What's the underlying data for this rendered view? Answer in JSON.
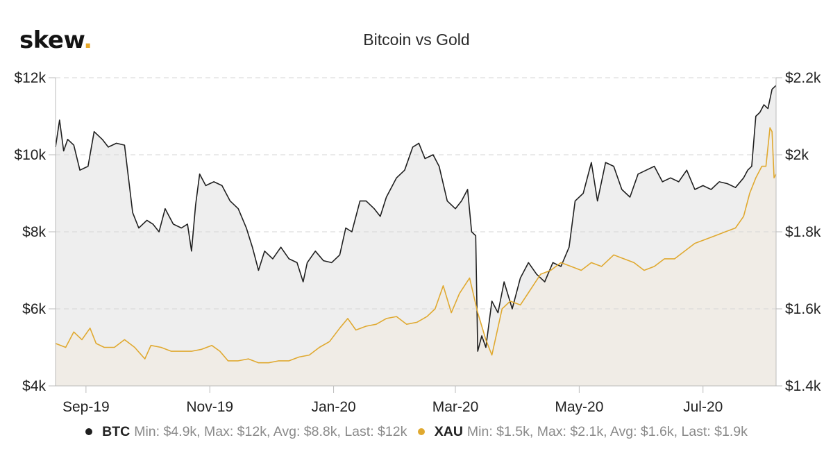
{
  "brand": {
    "name": "skew",
    "dot": "."
  },
  "chart_data": {
    "type": "line",
    "title": "Bitcoin vs Gold",
    "x_tick_labels": [
      "Sep-19",
      "Nov-19",
      "Jan-20",
      "Mar-20",
      "May-20",
      "Jul-20"
    ],
    "x_tick_dates": [
      "2019-09-01",
      "2019-11-01",
      "2020-01-01",
      "2020-03-01",
      "2020-05-01",
      "2020-07-01"
    ],
    "x_range": [
      "2019-08-17",
      "2020-08-06"
    ],
    "y_left": {
      "ticks": [
        4000,
        6000,
        8000,
        10000,
        12000
      ],
      "labels": [
        "$4k",
        "$6k",
        "$8k",
        "$10k",
        "$12k"
      ],
      "range": [
        4000,
        12000
      ]
    },
    "y_right": {
      "ticks": [
        1400,
        1600,
        1800,
        2000,
        2200
      ],
      "labels": [
        "$1.4k",
        "$1.6k",
        "$1.8k",
        "$2k",
        "$2.2k"
      ],
      "range": [
        1400,
        2200
      ]
    },
    "grid": "horizontal-dashed",
    "legend_position": "bottom",
    "series": [
      {
        "name": "BTC",
        "axis": "left",
        "color": "#1f1f1f",
        "fill": "#ebebeb",
        "stats": "Min: $4.9k, Max: $12k, Avg: $8.8k, Last: $12k",
        "points": [
          [
            "2019-08-17",
            10200
          ],
          [
            "2019-08-19",
            10900
          ],
          [
            "2019-08-21",
            10100
          ],
          [
            "2019-08-23",
            10400
          ],
          [
            "2019-08-26",
            10250
          ],
          [
            "2019-08-29",
            9600
          ],
          [
            "2019-09-02",
            9700
          ],
          [
            "2019-09-05",
            10600
          ],
          [
            "2019-09-09",
            10400
          ],
          [
            "2019-09-12",
            10200
          ],
          [
            "2019-09-16",
            10300
          ],
          [
            "2019-09-20",
            10250
          ],
          [
            "2019-09-24",
            8500
          ],
          [
            "2019-09-27",
            8100
          ],
          [
            "2019-10-01",
            8300
          ],
          [
            "2019-10-04",
            8200
          ],
          [
            "2019-10-07",
            8000
          ],
          [
            "2019-10-10",
            8600
          ],
          [
            "2019-10-14",
            8200
          ],
          [
            "2019-10-18",
            8100
          ],
          [
            "2019-10-21",
            8200
          ],
          [
            "2019-10-23",
            7500
          ],
          [
            "2019-10-25",
            8700
          ],
          [
            "2019-10-27",
            9500
          ],
          [
            "2019-10-30",
            9200
          ],
          [
            "2019-11-03",
            9300
          ],
          [
            "2019-11-07",
            9200
          ],
          [
            "2019-11-11",
            8800
          ],
          [
            "2019-11-15",
            8600
          ],
          [
            "2019-11-19",
            8100
          ],
          [
            "2019-11-22",
            7600
          ],
          [
            "2019-11-25",
            7000
          ],
          [
            "2019-11-28",
            7500
          ],
          [
            "2019-12-02",
            7300
          ],
          [
            "2019-12-06",
            7600
          ],
          [
            "2019-12-10",
            7300
          ],
          [
            "2019-12-14",
            7200
          ],
          [
            "2019-12-17",
            6700
          ],
          [
            "2019-12-19",
            7200
          ],
          [
            "2019-12-23",
            7500
          ],
          [
            "2019-12-27",
            7250
          ],
          [
            "2019-12-31",
            7200
          ],
          [
            "2020-01-04",
            7400
          ],
          [
            "2020-01-07",
            8100
          ],
          [
            "2020-01-10",
            8000
          ],
          [
            "2020-01-14",
            8800
          ],
          [
            "2020-01-17",
            8800
          ],
          [
            "2020-01-21",
            8600
          ],
          [
            "2020-01-24",
            8400
          ],
          [
            "2020-01-27",
            8900
          ],
          [
            "2020-02-01",
            9400
          ],
          [
            "2020-02-05",
            9600
          ],
          [
            "2020-02-09",
            10200
          ],
          [
            "2020-02-12",
            10300
          ],
          [
            "2020-02-15",
            9900
          ],
          [
            "2020-02-19",
            10000
          ],
          [
            "2020-02-22",
            9700
          ],
          [
            "2020-02-26",
            8800
          ],
          [
            "2020-03-01",
            8600
          ],
          [
            "2020-03-04",
            8800
          ],
          [
            "2020-03-07",
            9100
          ],
          [
            "2020-03-09",
            8000
          ],
          [
            "2020-03-11",
            7900
          ],
          [
            "2020-03-12",
            4900
          ],
          [
            "2020-03-14",
            5300
          ],
          [
            "2020-03-16",
            5000
          ],
          [
            "2020-03-19",
            6200
          ],
          [
            "2020-03-22",
            5900
          ],
          [
            "2020-03-25",
            6700
          ],
          [
            "2020-03-29",
            6000
          ],
          [
            "2020-04-02",
            6800
          ],
          [
            "2020-04-06",
            7200
          ],
          [
            "2020-04-10",
            6900
          ],
          [
            "2020-04-14",
            6700
          ],
          [
            "2020-04-18",
            7200
          ],
          [
            "2020-04-22",
            7100
          ],
          [
            "2020-04-26",
            7600
          ],
          [
            "2020-04-29",
            8800
          ],
          [
            "2020-05-03",
            9000
          ],
          [
            "2020-05-07",
            9800
          ],
          [
            "2020-05-10",
            8800
          ],
          [
            "2020-05-14",
            9800
          ],
          [
            "2020-05-18",
            9700
          ],
          [
            "2020-05-22",
            9100
          ],
          [
            "2020-05-26",
            8900
          ],
          [
            "2020-05-30",
            9500
          ],
          [
            "2020-06-03",
            9600
          ],
          [
            "2020-06-07",
            9700
          ],
          [
            "2020-06-11",
            9300
          ],
          [
            "2020-06-15",
            9400
          ],
          [
            "2020-06-19",
            9300
          ],
          [
            "2020-06-23",
            9600
          ],
          [
            "2020-06-27",
            9100
          ],
          [
            "2020-07-01",
            9200
          ],
          [
            "2020-07-05",
            9100
          ],
          [
            "2020-07-09",
            9300
          ],
          [
            "2020-07-13",
            9250
          ],
          [
            "2020-07-17",
            9150
          ],
          [
            "2020-07-21",
            9400
          ],
          [
            "2020-07-23",
            9600
          ],
          [
            "2020-07-25",
            9700
          ],
          [
            "2020-07-27",
            11000
          ],
          [
            "2020-07-29",
            11100
          ],
          [
            "2020-07-31",
            11300
          ],
          [
            "2020-08-02",
            11200
          ],
          [
            "2020-08-04",
            11700
          ],
          [
            "2020-08-06",
            11800
          ]
        ]
      },
      {
        "name": "XAU",
        "axis": "right",
        "color": "#e0a930",
        "fill": "#f0ebe4",
        "stats": "Min: $1.5k, Max: $2.1k, Avg: $1.6k, Last: $1.9k",
        "points": [
          [
            "2019-08-17",
            1510
          ],
          [
            "2019-08-22",
            1500
          ],
          [
            "2019-08-26",
            1540
          ],
          [
            "2019-08-30",
            1520
          ],
          [
            "2019-09-03",
            1550
          ],
          [
            "2019-09-06",
            1510
          ],
          [
            "2019-09-10",
            1500
          ],
          [
            "2019-09-15",
            1500
          ],
          [
            "2019-09-20",
            1520
          ],
          [
            "2019-09-25",
            1500
          ],
          [
            "2019-09-30",
            1470
          ],
          [
            "2019-10-03",
            1505
          ],
          [
            "2019-10-08",
            1500
          ],
          [
            "2019-10-13",
            1490
          ],
          [
            "2019-10-18",
            1490
          ],
          [
            "2019-10-23",
            1490
          ],
          [
            "2019-10-28",
            1495
          ],
          [
            "2019-11-02",
            1505
          ],
          [
            "2019-11-06",
            1490
          ],
          [
            "2019-11-10",
            1465
          ],
          [
            "2019-11-15",
            1465
          ],
          [
            "2019-11-20",
            1470
          ],
          [
            "2019-11-25",
            1460
          ],
          [
            "2019-11-30",
            1460
          ],
          [
            "2019-12-05",
            1465
          ],
          [
            "2019-12-10",
            1465
          ],
          [
            "2019-12-15",
            1475
          ],
          [
            "2019-12-20",
            1480
          ],
          [
            "2019-12-25",
            1500
          ],
          [
            "2019-12-30",
            1515
          ],
          [
            "2020-01-04",
            1550
          ],
          [
            "2020-01-08",
            1575
          ],
          [
            "2020-01-12",
            1545
          ],
          [
            "2020-01-17",
            1555
          ],
          [
            "2020-01-22",
            1560
          ],
          [
            "2020-01-27",
            1575
          ],
          [
            "2020-02-01",
            1580
          ],
          [
            "2020-02-06",
            1560
          ],
          [
            "2020-02-11",
            1565
          ],
          [
            "2020-02-16",
            1580
          ],
          [
            "2020-02-20",
            1600
          ],
          [
            "2020-02-24",
            1660
          ],
          [
            "2020-02-28",
            1590
          ],
          [
            "2020-03-03",
            1640
          ],
          [
            "2020-03-08",
            1680
          ],
          [
            "2020-03-12",
            1590
          ],
          [
            "2020-03-16",
            1520
          ],
          [
            "2020-03-19",
            1480
          ],
          [
            "2020-03-24",
            1600
          ],
          [
            "2020-03-28",
            1620
          ],
          [
            "2020-04-02",
            1610
          ],
          [
            "2020-04-07",
            1650
          ],
          [
            "2020-04-12",
            1690
          ],
          [
            "2020-04-17",
            1700
          ],
          [
            "2020-04-22",
            1720
          ],
          [
            "2020-04-27",
            1710
          ],
          [
            "2020-05-02",
            1700
          ],
          [
            "2020-05-07",
            1720
          ],
          [
            "2020-05-12",
            1710
          ],
          [
            "2020-05-18",
            1740
          ],
          [
            "2020-05-23",
            1730
          ],
          [
            "2020-05-28",
            1720
          ],
          [
            "2020-06-02",
            1700
          ],
          [
            "2020-06-07",
            1710
          ],
          [
            "2020-06-12",
            1730
          ],
          [
            "2020-06-17",
            1730
          ],
          [
            "2020-06-22",
            1750
          ],
          [
            "2020-06-27",
            1770
          ],
          [
            "2020-07-02",
            1780
          ],
          [
            "2020-07-07",
            1790
          ],
          [
            "2020-07-12",
            1800
          ],
          [
            "2020-07-17",
            1810
          ],
          [
            "2020-07-21",
            1840
          ],
          [
            "2020-07-24",
            1900
          ],
          [
            "2020-07-27",
            1940
          ],
          [
            "2020-07-30",
            1970
          ],
          [
            "2020-08-01",
            1970
          ],
          [
            "2020-08-03",
            2070
          ],
          [
            "2020-08-04",
            2060
          ],
          [
            "2020-08-05",
            1940
          ],
          [
            "2020-08-06",
            1950
          ]
        ]
      }
    ]
  }
}
